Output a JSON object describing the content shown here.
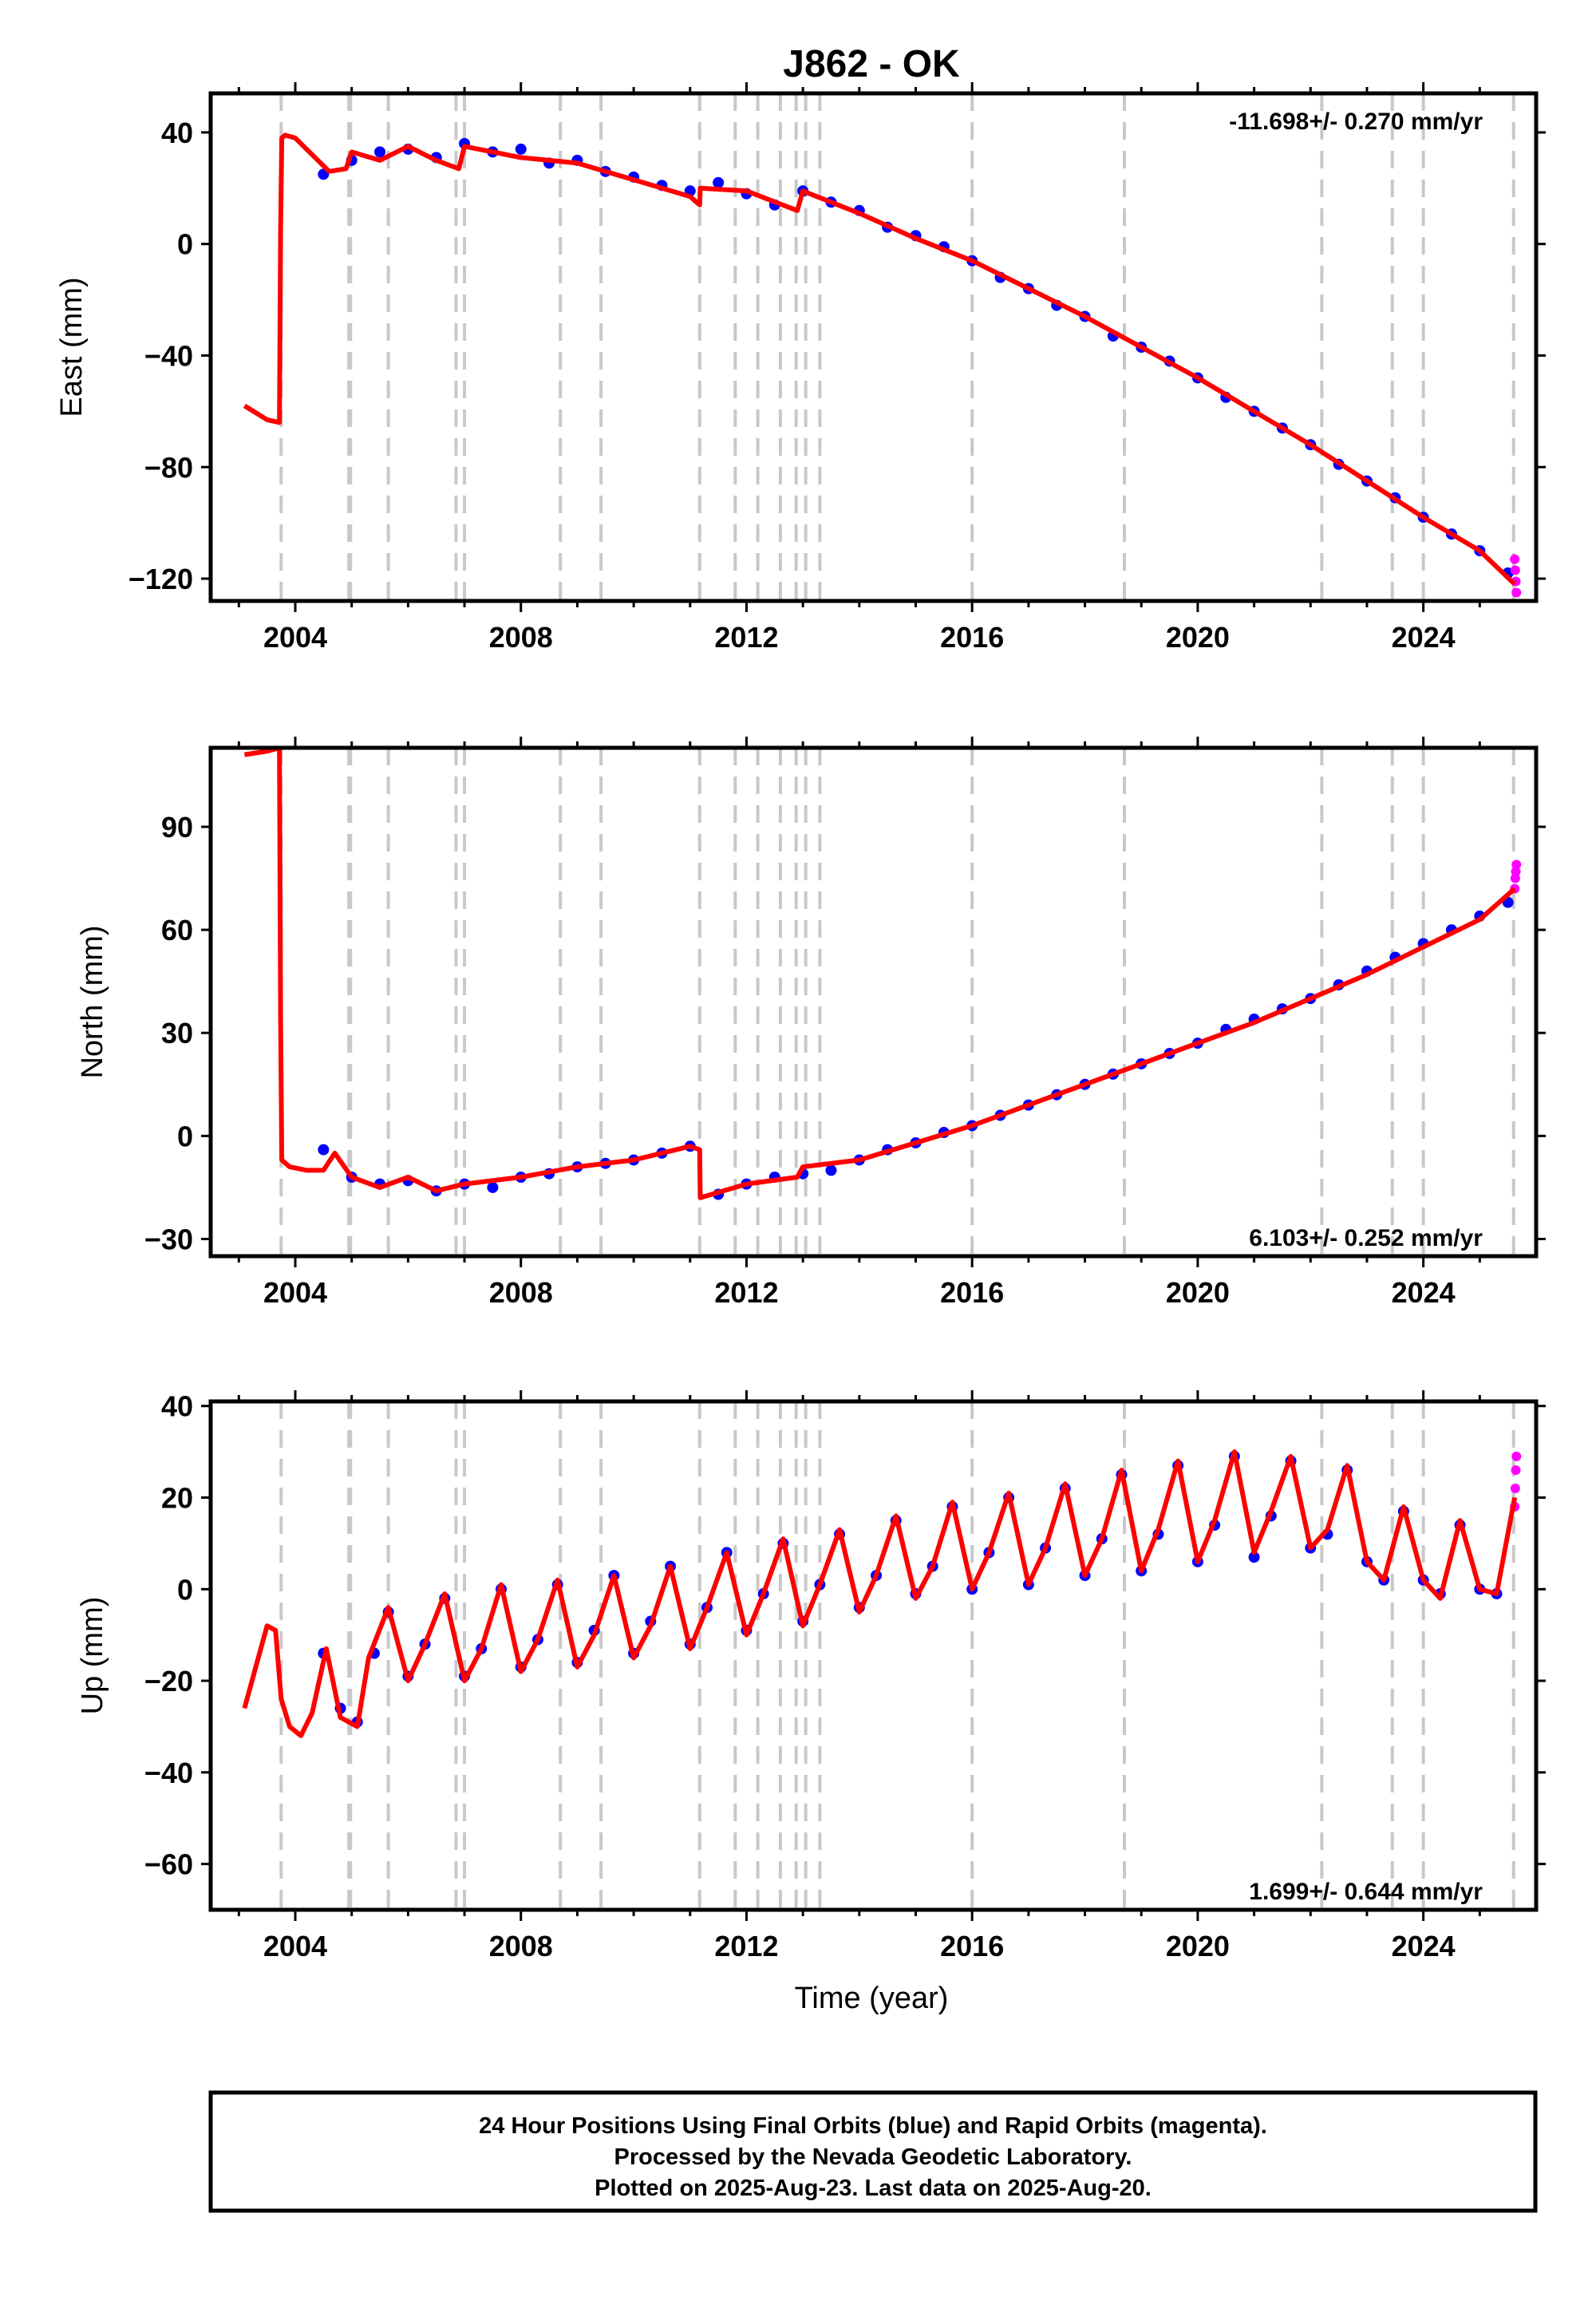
{
  "title": "J862 - OK",
  "xlabel": "Time (year)",
  "x_ticks": [
    "2004",
    "2008",
    "2012",
    "2016",
    "2020",
    "2024"
  ],
  "colors": {
    "final": "#0000ff",
    "rapid": "#ff00ff",
    "model": "#ff0000",
    "event": "#c8c8c8"
  },
  "event_lines": [
    2003.75,
    2004.95,
    2004.98,
    2005.65,
    2006.85,
    2007.0,
    2008.7,
    2009.42,
    2011.17,
    2011.8,
    2012.2,
    2012.6,
    2012.88,
    2013.05,
    2013.3,
    2016.0,
    2018.7,
    2022.2,
    2023.45,
    2024.0,
    2025.6
  ],
  "footer": {
    "line1": "24 Hour Positions Using Final Orbits (blue) and Rapid Orbits (magenta).",
    "line2": "Processed by the Nevada Geodetic Laboratory.",
    "line3": "Plotted on 2025-Aug-23. Last data on 2025-Aug-20."
  },
  "chart_data": [
    {
      "type": "scatter",
      "component": "east",
      "ylabel": "East (mm)",
      "rate_label": "-11.698+/- 0.270 mm/yr",
      "xlim": [
        2002.5,
        2026.0
      ],
      "ylim": [
        -128,
        54
      ],
      "y_ticks": [
        "40",
        "0",
        "-40",
        "-80",
        "-120"
      ],
      "y_tick_values": [
        40,
        0,
        -40,
        -80,
        -120
      ],
      "model_x": [
        2003.1,
        2003.5,
        2003.72,
        2003.74,
        2003.76,
        2003.82,
        2004.0,
        2004.3,
        2004.6,
        2004.9,
        2005.0,
        2005.5,
        2006.0,
        2006.5,
        2006.9,
        2007.0,
        2008.0,
        2009.0,
        2010.0,
        2011.0,
        2011.17,
        2011.18,
        2012.0,
        2012.9,
        2013.0,
        2014.0,
        2015.0,
        2016.0,
        2017.0,
        2018.0,
        2019.0,
        2020.0,
        2021.0,
        2022.0,
        2023.0,
        2024.0,
        2025.0,
        2025.62
      ],
      "model_y": [
        -58,
        -63,
        -64,
        4,
        38,
        39,
        38,
        32,
        26,
        27,
        33,
        30,
        35,
        30,
        27,
        35,
        31,
        29,
        23,
        17,
        14,
        20,
        19,
        12,
        19,
        11,
        2,
        -6,
        -16,
        -26,
        -37,
        -48,
        -60,
        -72,
        -85,
        -98,
        -110,
        -122
      ],
      "final_x": [
        2004.5,
        2005.0,
        2005.5,
        2006.0,
        2006.5,
        2007.0,
        2007.5,
        2008.0,
        2008.5,
        2009.0,
        2009.5,
        2010.0,
        2010.5,
        2011.0,
        2011.5,
        2012.0,
        2012.5,
        2013.0,
        2013.5,
        2014.0,
        2014.5,
        2015.0,
        2015.5,
        2016.0,
        2016.5,
        2017.0,
        2017.5,
        2018.0,
        2018.5,
        2019.0,
        2019.5,
        2020.0,
        2020.5,
        2021.0,
        2021.5,
        2022.0,
        2022.5,
        2023.0,
        2023.5,
        2024.0,
        2024.5,
        2025.0,
        2025.5
      ],
      "final_y": [
        25,
        30,
        33,
        34,
        31,
        36,
        33,
        34,
        29,
        30,
        26,
        24,
        21,
        19,
        22,
        18,
        14,
        19,
        15,
        12,
        6,
        3,
        -1,
        -6,
        -12,
        -16,
        -22,
        -26,
        -33,
        -37,
        -42,
        -48,
        -55,
        -60,
        -66,
        -72,
        -79,
        -85,
        -91,
        -98,
        -104,
        -110,
        -118
      ],
      "rapid_x": [
        2025.62,
        2025.63,
        2025.64,
        2025.65
      ],
      "rapid_y": [
        -113,
        -117,
        -121,
        -125
      ]
    },
    {
      "type": "scatter",
      "component": "north",
      "ylabel": "North (mm)",
      "rate_label": "6.103+/- 0.252 mm/yr",
      "xlim": [
        2002.5,
        2026.0
      ],
      "ylim": [
        -35,
        113
      ],
      "y_ticks": [
        "90",
        "60",
        "30",
        "0",
        "-30"
      ],
      "y_tick_values": [
        90,
        60,
        30,
        0,
        -30
      ],
      "model_x": [
        2003.1,
        2003.5,
        2003.72,
        2003.74,
        2003.76,
        2003.9,
        2004.2,
        2004.5,
        2004.7,
        2005.0,
        2005.5,
        2006.0,
        2006.5,
        2007.0,
        2008.0,
        2009.0,
        2010.0,
        2011.0,
        2011.17,
        2011.18,
        2012.0,
        2012.9,
        2013.0,
        2014.0,
        2015.0,
        2016.0,
        2017.0,
        2018.0,
        2019.0,
        2020.0,
        2021.0,
        2022.0,
        2023.0,
        2024.0,
        2025.0,
        2025.62
      ],
      "model_y": [
        111,
        112,
        113,
        35,
        -7,
        -9,
        -10,
        -10,
        -5,
        -12,
        -15,
        -12,
        -16,
        -14,
        -12,
        -9,
        -7,
        -3,
        -4,
        -18,
        -14,
        -12,
        -9,
        -7,
        -2,
        3,
        9,
        15,
        21,
        27,
        33,
        40,
        47,
        55,
        63,
        72
      ],
      "final_x": [
        2004.5,
        2005.0,
        2005.5,
        2006.0,
        2006.5,
        2007.0,
        2007.5,
        2008.0,
        2008.5,
        2009.0,
        2009.5,
        2010.0,
        2010.5,
        2011.0,
        2011.5,
        2012.0,
        2012.5,
        2013.0,
        2013.5,
        2014.0,
        2014.5,
        2015.0,
        2015.5,
        2016.0,
        2016.5,
        2017.0,
        2017.5,
        2018.0,
        2018.5,
        2019.0,
        2019.5,
        2020.0,
        2020.5,
        2021.0,
        2021.5,
        2022.0,
        2022.5,
        2023.0,
        2023.5,
        2024.0,
        2024.5,
        2025.0,
        2025.5
      ],
      "final_y": [
        -4,
        -12,
        -14,
        -13,
        -16,
        -14,
        -15,
        -12,
        -11,
        -9,
        -8,
        -7,
        -5,
        -3,
        -17,
        -14,
        -12,
        -11,
        -10,
        -7,
        -4,
        -2,
        1,
        3,
        6,
        9,
        12,
        15,
        18,
        21,
        24,
        27,
        31,
        34,
        37,
        40,
        44,
        48,
        52,
        56,
        60,
        64,
        68
      ],
      "rapid_x": [
        2025.62,
        2025.63,
        2025.64,
        2025.65
      ],
      "rapid_y": [
        72,
        75,
        77,
        79
      ]
    },
    {
      "type": "scatter",
      "component": "up",
      "ylabel": "Up (mm)",
      "rate_label": "1.699+/- 0.644 mm/yr",
      "xlim": [
        2002.5,
        2026.0
      ],
      "ylim": [
        -70,
        41
      ],
      "y_ticks": [
        "40",
        "20",
        "0",
        "-20",
        "-40",
        "-60"
      ],
      "y_tick_values": [
        40,
        20,
        0,
        -20,
        -40,
        -60
      ],
      "model_x": [
        2003.1,
        2003.3,
        2003.5,
        2003.65,
        2003.75,
        2003.9,
        2004.1,
        2004.3,
        2004.55,
        2004.8,
        2005.1,
        2005.3,
        2005.65,
        2006.0,
        2006.3,
        2006.65,
        2007.0,
        2007.3,
        2007.65,
        2008.0,
        2008.3,
        2008.65,
        2009.0,
        2009.3,
        2009.65,
        2010.0,
        2010.3,
        2010.65,
        2011.0,
        2011.3,
        2011.65,
        2012.0,
        2012.3,
        2012.65,
        2013.0,
        2013.3,
        2013.65,
        2014.0,
        2014.3,
        2014.65,
        2015.0,
        2015.3,
        2015.65,
        2016.0,
        2016.3,
        2016.65,
        2017.0,
        2017.3,
        2017.65,
        2018.0,
        2018.3,
        2018.65,
        2019.0,
        2019.3,
        2019.65,
        2020.0,
        2020.3,
        2020.65,
        2021.0,
        2021.3,
        2021.65,
        2022.0,
        2022.3,
        2022.65,
        2023.0,
        2023.3,
        2023.65,
        2024.0,
        2024.3,
        2024.65,
        2025.0,
        2025.3,
        2025.62
      ],
      "model_y": [
        -26,
        -17,
        -8,
        -9,
        -24,
        -30,
        -32,
        -27,
        -13,
        -28,
        -30,
        -15,
        -4,
        -20,
        -12,
        -1,
        -20,
        -13,
        1,
        -18,
        -11,
        2,
        -17,
        -10,
        3,
        -15,
        -8,
        5,
        -13,
        -4,
        8,
        -10,
        -1,
        11,
        -8,
        1,
        13,
        -5,
        3,
        16,
        -2,
        5,
        19,
        0,
        8,
        21,
        1,
        9,
        23,
        3,
        11,
        26,
        4,
        13,
        28,
        6,
        15,
        30,
        8,
        17,
        29,
        9,
        13,
        27,
        6,
        2,
        18,
        2,
        -2,
        15,
        0,
        -1,
        20
      ],
      "final_x": [
        2004.5,
        2004.8,
        2005.1,
        2005.4,
        2005.65,
        2006.0,
        2006.3,
        2006.65,
        2007.0,
        2007.3,
        2007.65,
        2008.0,
        2008.3,
        2008.65,
        2009.0,
        2009.3,
        2009.65,
        2010.0,
        2010.3,
        2010.65,
        2011.0,
        2011.3,
        2011.65,
        2012.0,
        2012.3,
        2012.65,
        2013.0,
        2013.3,
        2013.65,
        2014.0,
        2014.3,
        2014.65,
        2015.0,
        2015.3,
        2015.65,
        2016.0,
        2016.3,
        2016.65,
        2017.0,
        2017.3,
        2017.65,
        2018.0,
        2018.3,
        2018.65,
        2019.0,
        2019.3,
        2019.65,
        2020.0,
        2020.3,
        2020.65,
        2021.0,
        2021.3,
        2021.65,
        2022.0,
        2022.3,
        2022.65,
        2023.0,
        2023.3,
        2023.65,
        2024.0,
        2024.3,
        2024.65,
        2025.0,
        2025.3
      ],
      "final_y": [
        -14,
        -26,
        -29,
        -14,
        -5,
        -19,
        -12,
        -2,
        -19,
        -13,
        0,
        -17,
        -11,
        1,
        -16,
        -9,
        3,
        -14,
        -7,
        5,
        -12,
        -4,
        8,
        -9,
        -1,
        10,
        -7,
        1,
        12,
        -4,
        3,
        15,
        -1,
        5,
        18,
        0,
        8,
        20,
        1,
        9,
        22,
        3,
        11,
        25,
        4,
        12,
        27,
        6,
        14,
        29,
        7,
        16,
        28,
        9,
        12,
        26,
        6,
        2,
        17,
        2,
        -1,
        14,
        0,
        -1
      ],
      "rapid_x": [
        2025.62,
        2025.63,
        2025.64,
        2025.65
      ],
      "rapid_y": [
        18,
        22,
        26,
        29
      ]
    }
  ]
}
